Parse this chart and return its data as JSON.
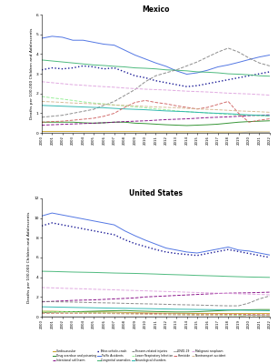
{
  "title_mexico": "Mexico",
  "title_us": "United States",
  "ylabel": "Deaths per 100,000 Children and Adolescents",
  "years": [
    2000,
    2001,
    2002,
    2003,
    2004,
    2005,
    2006,
    2007,
    2008,
    2009,
    2010,
    2011,
    2012,
    2013,
    2014,
    2015,
    2016,
    2017,
    2018,
    2019,
    2020,
    2021,
    2022
  ],
  "mexico": {
    "Cardiovascular": [
      0.08,
      0.08,
      0.08,
      0.08,
      0.07,
      0.07,
      0.07,
      0.07,
      0.07,
      0.07,
      0.06,
      0.06,
      0.06,
      0.06,
      0.06,
      0.06,
      0.06,
      0.05,
      0.05,
      0.05,
      0.05,
      0.05,
      0.05
    ],
    "Drug overdose and poisoning": [
      0.55,
      0.55,
      0.55,
      0.55,
      0.52,
      0.5,
      0.52,
      0.55,
      0.55,
      0.5,
      0.48,
      0.45,
      0.42,
      0.4,
      0.38,
      0.4,
      0.42,
      0.45,
      0.5,
      0.55,
      0.58,
      0.6,
      0.62
    ],
    "Intentional self-harm": [
      0.4,
      0.42,
      0.44,
      0.46,
      0.48,
      0.5,
      0.52,
      0.55,
      0.58,
      0.6,
      0.62,
      0.65,
      0.68,
      0.7,
      0.72,
      0.75,
      0.78,
      0.8,
      0.82,
      0.85,
      0.88,
      0.9,
      0.92
    ],
    "Motor-vehicle-crash": [
      3.2,
      3.3,
      3.25,
      3.3,
      3.4,
      3.35,
      3.25,
      3.3,
      3.1,
      2.9,
      2.8,
      2.65,
      2.55,
      2.45,
      2.35,
      2.4,
      2.5,
      2.6,
      2.7,
      2.8,
      2.9,
      3.0,
      3.1
    ],
    "Traffic Accidents": [
      4.8,
      4.9,
      4.85,
      4.7,
      4.7,
      4.6,
      4.5,
      4.45,
      4.2,
      3.95,
      3.75,
      3.55,
      3.38,
      3.15,
      2.98,
      3.05,
      3.18,
      3.35,
      3.45,
      3.58,
      3.72,
      3.85,
      3.95
    ],
    "Congenital anomalies": [
      3.7,
      3.65,
      3.6,
      3.55,
      3.5,
      3.45,
      3.42,
      3.38,
      3.35,
      3.3,
      3.28,
      3.25,
      3.2,
      3.18,
      3.15,
      3.1,
      3.08,
      3.05,
      3.0,
      2.98,
      2.95,
      2.9,
      2.88
    ],
    "Firearm-related injuries": [
      0.8,
      0.85,
      0.9,
      1.0,
      1.1,
      1.2,
      1.4,
      1.6,
      1.9,
      2.2,
      2.6,
      2.9,
      3.05,
      3.2,
      3.4,
      3.6,
      3.85,
      4.1,
      4.3,
      4.1,
      3.8,
      3.55,
      3.4
    ],
    "Lower Respiratory Infection": [
      1.85,
      1.78,
      1.72,
      1.65,
      1.58,
      1.52,
      1.48,
      1.42,
      1.38,
      1.32,
      1.28,
      1.22,
      1.18,
      1.12,
      1.08,
      1.05,
      1.02,
      0.98,
      0.95,
      0.92,
      0.9,
      0.88,
      0.85
    ],
    "Neurological disorders": [
      1.4,
      1.38,
      1.36,
      1.34,
      1.32,
      1.3,
      1.28,
      1.25,
      1.22,
      1.2,
      1.18,
      1.15,
      1.12,
      1.1,
      1.08,
      1.05,
      1.02,
      1.0,
      0.98,
      0.95,
      0.92,
      0.9,
      0.88
    ],
    "COVID-19": [
      0.0,
      0.0,
      0.0,
      0.0,
      0.0,
      0.0,
      0.0,
      0.0,
      0.0,
      0.0,
      0.0,
      0.0,
      0.0,
      0.0,
      0.0,
      0.0,
      0.0,
      0.0,
      0.0,
      0.0,
      0.05,
      0.04,
      0.03
    ],
    "Homicide": [
      0.55,
      0.58,
      0.6,
      0.65,
      0.7,
      0.75,
      0.85,
      1.0,
      1.3,
      1.55,
      1.65,
      1.55,
      1.48,
      1.38,
      1.3,
      1.22,
      1.3,
      1.45,
      1.6,
      1.0,
      0.55,
      0.65,
      0.72
    ],
    "Malignant neoplasm": [
      2.6,
      2.55,
      2.5,
      2.45,
      2.42,
      2.38,
      2.35,
      2.32,
      2.28,
      2.25,
      2.22,
      2.2,
      2.18,
      2.15,
      2.12,
      2.1,
      2.08,
      2.05,
      2.02,
      2.0,
      1.98,
      1.95,
      1.92
    ],
    "Nontransport accident": [
      1.6,
      1.58,
      1.55,
      1.52,
      1.5,
      1.48,
      1.45,
      1.42,
      1.4,
      1.38,
      1.35,
      1.32,
      1.3,
      1.28,
      1.25,
      1.22,
      1.2,
      1.18,
      1.15,
      1.12,
      1.1,
      1.08,
      1.05
    ]
  },
  "us": {
    "Cardiovascular": [
      0.55,
      0.55,
      0.52,
      0.5,
      0.48,
      0.48,
      0.48,
      0.45,
      0.42,
      0.4,
      0.38,
      0.36,
      0.35,
      0.34,
      0.33,
      0.32,
      0.32,
      0.32,
      0.32,
      0.32,
      0.32,
      0.32,
      0.32
    ],
    "Drug overdose and poisoning": [
      0.42,
      0.45,
      0.48,
      0.5,
      0.52,
      0.55,
      0.58,
      0.6,
      0.62,
      0.58,
      0.55,
      0.52,
      0.5,
      0.48,
      0.48,
      0.5,
      0.55,
      0.6,
      0.65,
      0.68,
      0.7,
      0.72,
      0.72
    ],
    "Intentional self-harm": [
      1.5,
      1.55,
      1.6,
      1.65,
      1.68,
      1.7,
      1.75,
      1.8,
      1.85,
      1.9,
      2.0,
      2.05,
      2.1,
      2.15,
      2.2,
      2.25,
      2.3,
      2.35,
      2.38,
      2.4,
      2.42,
      2.45,
      2.48
    ],
    "Motor-vehicle-crash": [
      9.2,
      9.5,
      9.3,
      9.1,
      8.9,
      8.7,
      8.5,
      8.3,
      7.8,
      7.4,
      7.1,
      6.8,
      6.55,
      6.4,
      6.3,
      6.2,
      6.4,
      6.6,
      6.8,
      6.6,
      6.4,
      6.2,
      6.0
    ],
    "Traffic Accidents": [
      10.2,
      10.5,
      10.3,
      10.1,
      9.9,
      9.7,
      9.5,
      9.3,
      8.7,
      8.2,
      7.75,
      7.35,
      6.95,
      6.75,
      6.55,
      6.45,
      6.65,
      6.85,
      7.05,
      6.75,
      6.65,
      6.45,
      6.25
    ],
    "Congenital anomalies": [
      4.6,
      4.58,
      4.55,
      4.52,
      4.5,
      4.48,
      4.45,
      4.42,
      4.4,
      4.38,
      4.35,
      4.32,
      4.28,
      4.25,
      4.22,
      4.18,
      4.15,
      4.12,
      4.08,
      4.05,
      4.02,
      4.0,
      3.98
    ],
    "Firearm-related injuries": [
      1.55,
      1.52,
      1.5,
      1.48,
      1.45,
      1.42,
      1.4,
      1.38,
      1.35,
      1.32,
      1.3,
      1.28,
      1.25,
      1.22,
      1.2,
      1.18,
      1.15,
      1.12,
      1.1,
      1.1,
      1.38,
      1.8,
      2.1
    ],
    "Lower Respiratory Infection": [
      0.55,
      0.52,
      0.5,
      0.48,
      0.45,
      0.42,
      0.4,
      0.38,
      0.36,
      0.34,
      0.32,
      0.3,
      0.28,
      0.26,
      0.24,
      0.22,
      0.2,
      0.18,
      0.16,
      0.14,
      0.12,
      0.1,
      0.09
    ],
    "Neurological disorders": [
      1.0,
      0.98,
      0.96,
      0.94,
      0.92,
      0.9,
      0.88,
      0.86,
      0.85,
      0.83,
      0.82,
      0.8,
      0.78,
      0.76,
      0.75,
      0.73,
      0.72,
      0.7,
      0.68,
      0.66,
      0.64,
      0.62,
      0.6
    ],
    "COVID-19": [
      0.0,
      0.0,
      0.0,
      0.0,
      0.0,
      0.0,
      0.0,
      0.0,
      0.0,
      0.0,
      0.0,
      0.0,
      0.0,
      0.0,
      0.0,
      0.0,
      0.0,
      0.0,
      0.0,
      0.0,
      0.15,
      0.12,
      0.08
    ],
    "Homicide": [
      0.35,
      0.35,
      0.35,
      0.35,
      0.35,
      0.35,
      0.35,
      0.35,
      0.35,
      0.34,
      0.33,
      0.32,
      0.3,
      0.29,
      0.28,
      0.27,
      0.26,
      0.25,
      0.24,
      0.23,
      0.22,
      0.21,
      0.2
    ],
    "Malignant neoplasm": [
      2.95,
      2.92,
      2.88,
      2.85,
      2.82,
      2.78,
      2.75,
      2.72,
      2.68,
      2.65,
      2.62,
      2.58,
      2.55,
      2.52,
      2.48,
      2.45,
      2.42,
      2.38,
      2.35,
      2.32,
      2.28,
      2.25,
      2.22
    ],
    "Nontransport accident": [
      0.38,
      0.38,
      0.38,
      0.36,
      0.35,
      0.34,
      0.32,
      0.3,
      0.28,
      0.26,
      0.24,
      0.22,
      0.2,
      0.18,
      0.16,
      0.14,
      0.12,
      0.1,
      0.09,
      0.08,
      0.07,
      0.06,
      0.05
    ]
  },
  "line_styles": {
    "Cardiovascular": {
      "color": "#C8A020",
      "ls": "solid",
      "lw": 0.7
    },
    "Drug overdose and poisoning": {
      "color": "#228B22",
      "ls": "solid",
      "lw": 0.7
    },
    "Intentional self-harm": {
      "color": "#800080",
      "ls": "dashed",
      "lw": 0.7
    },
    "Motor-vehicle-crash": {
      "color": "#00008B",
      "ls": "dotted",
      "lw": 1.0
    },
    "Traffic Accidents": {
      "color": "#4169E1",
      "ls": "solid",
      "lw": 0.7
    },
    "Congenital anomalies": {
      "color": "#3CB371",
      "ls": "solid",
      "lw": 0.7
    },
    "Firearm-related injuries": {
      "color": "#808080",
      "ls": "dashed",
      "lw": 0.7
    },
    "Lower Respiratory Infection": {
      "color": "#90EE90",
      "ls": "dashed",
      "lw": 0.7
    },
    "Neurological disorders": {
      "color": "#20B2AA",
      "ls": "solid",
      "lw": 0.7
    },
    "COVID-19": {
      "color": "#A9A9A9",
      "ls": "solid",
      "lw": 0.7
    },
    "Homicide": {
      "color": "#CD5C5C",
      "ls": "dashed",
      "lw": 0.7
    },
    "Malignant neoplasm": {
      "color": "#DDA0DD",
      "ls": "dashed",
      "lw": 0.7
    },
    "Nontransport accident": {
      "color": "#D2B48C",
      "ls": "dashed",
      "lw": 0.7
    }
  },
  "mexico_ylim": [
    0,
    6
  ],
  "us_ylim": [
    0,
    12
  ],
  "mexico_yticks": [
    0,
    1,
    2,
    3,
    4,
    5,
    6
  ],
  "us_yticks": [
    0,
    2,
    4,
    6,
    8,
    10,
    12
  ],
  "legend_order": [
    "Cardiovascular",
    "Drug overdose and poisoning",
    "Intentional self-harm",
    "Motor-vehicle-crash",
    "Traffic Accidents",
    "Congenital anomalies",
    "Firearm-related injuries",
    "Lower Respiratory Infection",
    "Neurological disorders",
    "COVID-19",
    "Homicide",
    "Malignant neoplasm",
    "Nontransport accident"
  ],
  "background_color": "#ffffff"
}
